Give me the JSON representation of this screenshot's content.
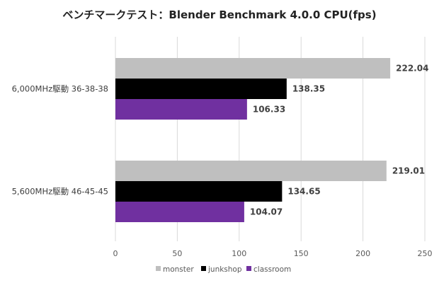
{
  "chart_data": {
    "type": "bar",
    "orientation": "horizontal",
    "title": "ベンチマークテスト：Blender Benchmark 4.0.0 CPU(fps)",
    "categories": [
      "6,000MHz駆動 36-38-38",
      "5,600MHz駆動 46-45-45"
    ],
    "series": [
      {
        "name": "monster",
        "color": "#bfbfbf",
        "values": [
          222.04,
          219.01
        ]
      },
      {
        "name": "junkshop",
        "color": "#000000",
        "values": [
          138.35,
          134.65
        ]
      },
      {
        "name": "classroom",
        "color": "#7030a0",
        "values": [
          106.33,
          104.07
        ]
      }
    ],
    "xlim": [
      0,
      250
    ],
    "xticks": [
      0,
      50,
      100,
      150,
      200,
      250
    ],
    "xlabel": "",
    "ylabel": "",
    "grid": true,
    "legend_position": "bottom",
    "data_labels": true
  }
}
